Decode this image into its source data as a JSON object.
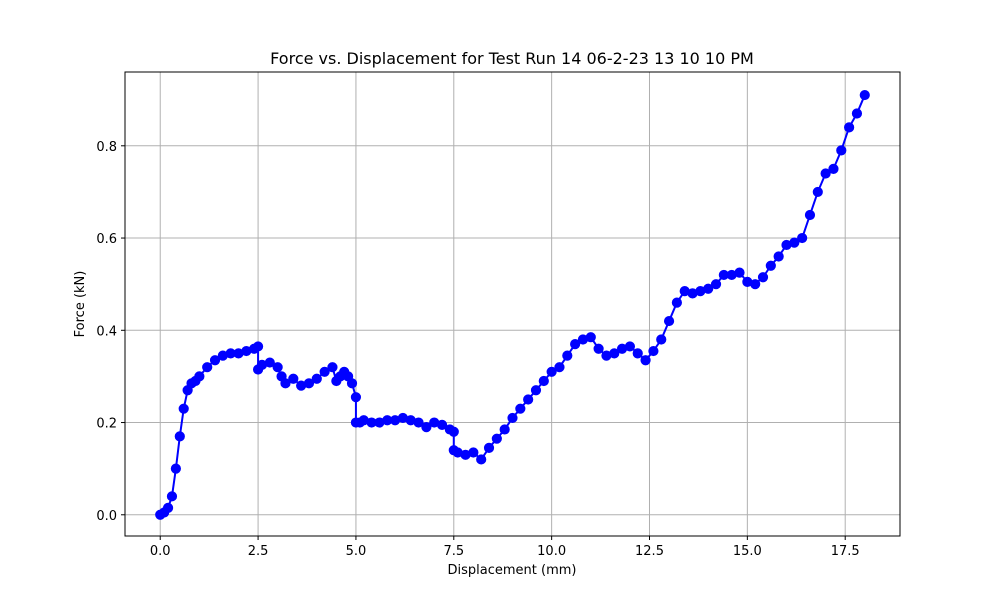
{
  "chart_data": {
    "type": "line",
    "title": "Force vs. Displacement for Test Run 14 06-2-23 13 10 10 PM",
    "xlabel": "Displacement (mm)",
    "ylabel": "Force (kN)",
    "xlim": [
      -0.9,
      18.9
    ],
    "ylim": [
      -0.046,
      0.96
    ],
    "xticks": [
      0.0,
      2.5,
      5.0,
      7.5,
      10.0,
      12.5,
      15.0,
      17.5
    ],
    "xtick_labels": [
      "0.0",
      "2.5",
      "5.0",
      "7.5",
      "10.0",
      "12.5",
      "15.0",
      "17.5"
    ],
    "yticks": [
      0.0,
      0.2,
      0.4,
      0.6,
      0.8
    ],
    "ytick_labels": [
      "0.0",
      "0.2",
      "0.4",
      "0.6",
      "0.8"
    ],
    "grid": true,
    "marker": "circle",
    "color": "#0000ff",
    "series": [
      {
        "x": [
          0.0,
          0.1,
          0.2,
          0.3,
          0.4,
          0.5,
          0.6,
          0.7,
          0.8,
          0.9,
          1.0,
          1.2,
          1.4,
          1.6,
          1.8,
          2.0,
          2.2,
          2.4,
          2.5,
          2.5,
          2.6,
          2.8,
          3.0,
          3.1,
          3.2,
          3.4,
          3.6,
          3.8,
          4.0,
          4.2,
          4.4,
          4.5,
          4.6,
          4.7,
          4.8,
          4.9,
          5.0,
          5.0,
          5.1,
          5.2,
          5.4,
          5.6,
          5.8,
          6.0,
          6.2,
          6.4,
          6.6,
          6.8,
          7.0,
          7.2,
          7.4,
          7.5,
          7.5,
          7.6,
          7.8,
          8.0,
          8.2,
          8.4,
          8.6,
          8.8,
          9.0,
          9.2,
          9.4,
          9.6,
          9.8,
          10.0,
          10.2,
          10.4,
          10.6,
          10.8,
          11.0,
          11.2,
          11.4,
          11.6,
          11.8,
          12.0,
          12.2,
          12.4,
          12.6,
          12.8,
          13.0,
          13.2,
          13.4,
          13.6,
          13.8,
          14.0,
          14.2,
          14.4,
          14.6,
          14.8,
          15.0,
          15.2,
          15.4,
          15.6,
          15.8,
          16.0,
          16.2,
          16.4,
          16.6,
          16.8,
          17.0,
          17.2,
          17.4,
          17.6,
          17.8,
          18.0
        ],
        "y": [
          0.0,
          0.005,
          0.015,
          0.04,
          0.1,
          0.17,
          0.23,
          0.27,
          0.285,
          0.29,
          0.3,
          0.32,
          0.335,
          0.345,
          0.35,
          0.35,
          0.355,
          0.36,
          0.365,
          0.315,
          0.325,
          0.33,
          0.32,
          0.3,
          0.285,
          0.295,
          0.28,
          0.285,
          0.295,
          0.31,
          0.32,
          0.29,
          0.3,
          0.31,
          0.3,
          0.285,
          0.255,
          0.2,
          0.2,
          0.205,
          0.2,
          0.2,
          0.205,
          0.205,
          0.21,
          0.205,
          0.2,
          0.19,
          0.2,
          0.195,
          0.185,
          0.18,
          0.14,
          0.135,
          0.13,
          0.135,
          0.12,
          0.145,
          0.165,
          0.185,
          0.21,
          0.23,
          0.25,
          0.27,
          0.29,
          0.31,
          0.32,
          0.345,
          0.37,
          0.38,
          0.385,
          0.36,
          0.345,
          0.35,
          0.36,
          0.365,
          0.35,
          0.335,
          0.355,
          0.38,
          0.42,
          0.46,
          0.485,
          0.48,
          0.485,
          0.49,
          0.5,
          0.52,
          0.52,
          0.525,
          0.505,
          0.5,
          0.515,
          0.54,
          0.56,
          0.585,
          0.59,
          0.6,
          0.65,
          0.7,
          0.74,
          0.75,
          0.79,
          0.84,
          0.87,
          0.91
        ]
      }
    ]
  }
}
